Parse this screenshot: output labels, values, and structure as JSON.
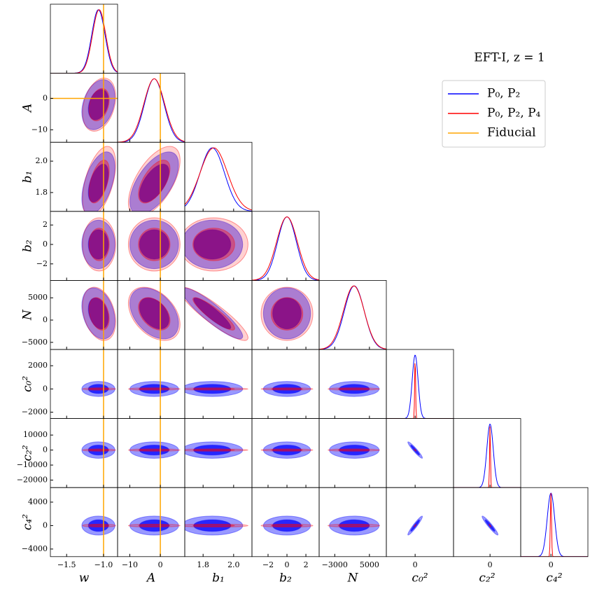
{
  "chart_data": {
    "type": "corner",
    "title": "EFT-I, z = 1",
    "parameters": [
      {
        "label": "w",
        "lim": [
          -1.72,
          -0.81
        ],
        "xticks": [
          {
            "value": -1.5,
            "label": "−1.5"
          },
          {
            "value": -1.0,
            "label": "−1.0"
          }
        ]
      },
      {
        "label": "A",
        "lim": [
          -14,
          8
        ],
        "xticks": [
          {
            "value": -10,
            "label": "−10"
          },
          0
        ],
        "yticks": [
          0,
          {
            "value": -10,
            "label": "−10"
          }
        ]
      },
      {
        "label": "b₁",
        "lim": [
          1.68,
          2.12
        ],
        "xticks": [
          1.8,
          {
            "value": 2.0,
            "label": "2.0"
          }
        ],
        "yticks": [
          1.8,
          {
            "value": 2.0,
            "label": "2.0"
          }
        ]
      },
      {
        "label": "b₂",
        "lim": [
          -3.7,
          3.4
        ],
        "xticks": [
          {
            "value": -2,
            "label": "−2"
          },
          0,
          2
        ],
        "yticks": [
          {
            "value": -2,
            "label": "−2"
          },
          0,
          2
        ]
      },
      {
        "label": "N",
        "lim": [
          -6600,
          8900
        ],
        "xticks": [
          {
            "value": -3000,
            "label": "−3000"
          },
          5000
        ],
        "yticks": [
          {
            "value": -5000,
            "label": "−5000"
          },
          0,
          5000
        ]
      },
      {
        "label": "c₀²",
        "lim": [
          -2550,
          3400
        ],
        "xticks": [
          0
        ],
        "yticks": [
          {
            "value": -2000,
            "label": "−2000"
          },
          0,
          2000
        ]
      },
      {
        "label": "c₂²",
        "lim": [
          -25000,
          21000
        ],
        "xticks": [
          0
        ],
        "yticks": [
          {
            "value": -20000,
            "label": "−20000"
          },
          {
            "value": -10000,
            "label": "−10000"
          },
          0,
          10000
        ]
      },
      {
        "label": "c₄²",
        "lim": [
          -5300,
          6480
        ],
        "xticks": [
          0
        ],
        "yticks": [
          {
            "value": -4000,
            "label": "−4000"
          },
          0,
          4000
        ]
      }
    ],
    "series": [
      {
        "name": "P₀, P₂",
        "color": "#0000ff",
        "means": [
          -1.07,
          -2,
          1.86,
          0,
          1500,
          0,
          0,
          0
        ],
        "sigmas": [
          0.09,
          3.2,
          0.08,
          1.0,
          2300,
          260,
          2200,
          650
        ],
        "correlations": [
          [
            0.3
          ],
          [
            0.5,
            0.6
          ],
          [
            0,
            0,
            0
          ],
          [
            -0.3,
            -0.4,
            -0.9,
            0
          ],
          [
            0,
            0,
            0,
            0,
            0
          ],
          [
            0,
            0,
            0,
            0,
            0,
            -0.95
          ],
          [
            0,
            0,
            0,
            0,
            0,
            0.95,
            -0.95
          ]
        ]
      },
      {
        "name": "P₀, P₂, P₄",
        "color": "#ff0000",
        "means": [
          -1.06,
          -2,
          1.87,
          0,
          1400,
          0,
          0,
          0
        ],
        "sigmas": [
          0.09,
          3.4,
          0.09,
          1.1,
          2400,
          40,
          300,
          100
        ],
        "correlations": [
          [
            0.3
          ],
          [
            0.5,
            0.6
          ],
          [
            0,
            0,
            0
          ],
          [
            -0.3,
            -0.4,
            -0.9,
            0
          ],
          [
            0,
            0,
            0,
            0,
            0
          ],
          [
            0,
            0,
            0,
            0,
            0,
            -0.95
          ],
          [
            0,
            0,
            0,
            0,
            0,
            0.95,
            -0.95
          ]
        ]
      },
      {
        "name": "Fiducial",
        "color": "orange",
        "values": [
          -1,
          0,
          null,
          null,
          null,
          null,
          null,
          null
        ]
      }
    ]
  }
}
